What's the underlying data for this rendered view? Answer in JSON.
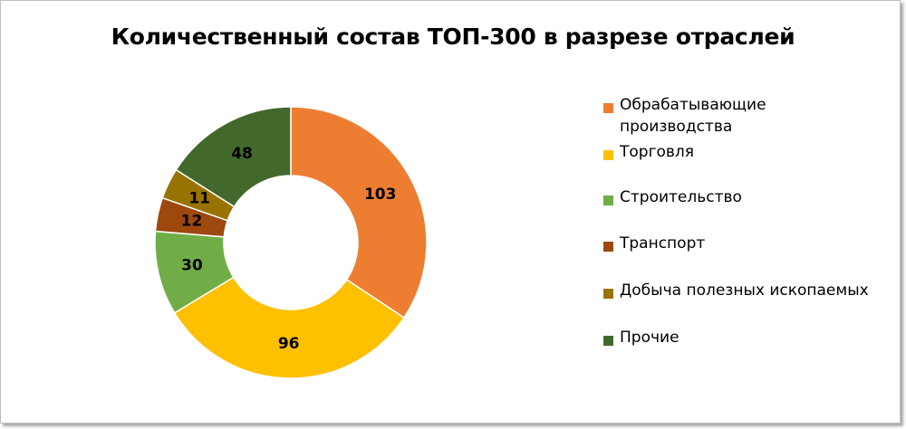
{
  "chart_data": {
    "type": "pie",
    "donut": true,
    "title": "Количественный состав ТОП-300 в разрезе отраслей",
    "categories": [
      "Обрабатывающие\nпроизводства",
      "Торговля",
      "Строительство",
      "Транспорт",
      "Добыча полезных ископаемых",
      "Прочие"
    ],
    "values": [
      103,
      96,
      30,
      12,
      11,
      48
    ],
    "colors": [
      "#ED7D31",
      "#FFC000",
      "#70AD47",
      "#9E480E",
      "#997300",
      "#43682B"
    ],
    "legend_position": "right"
  }
}
